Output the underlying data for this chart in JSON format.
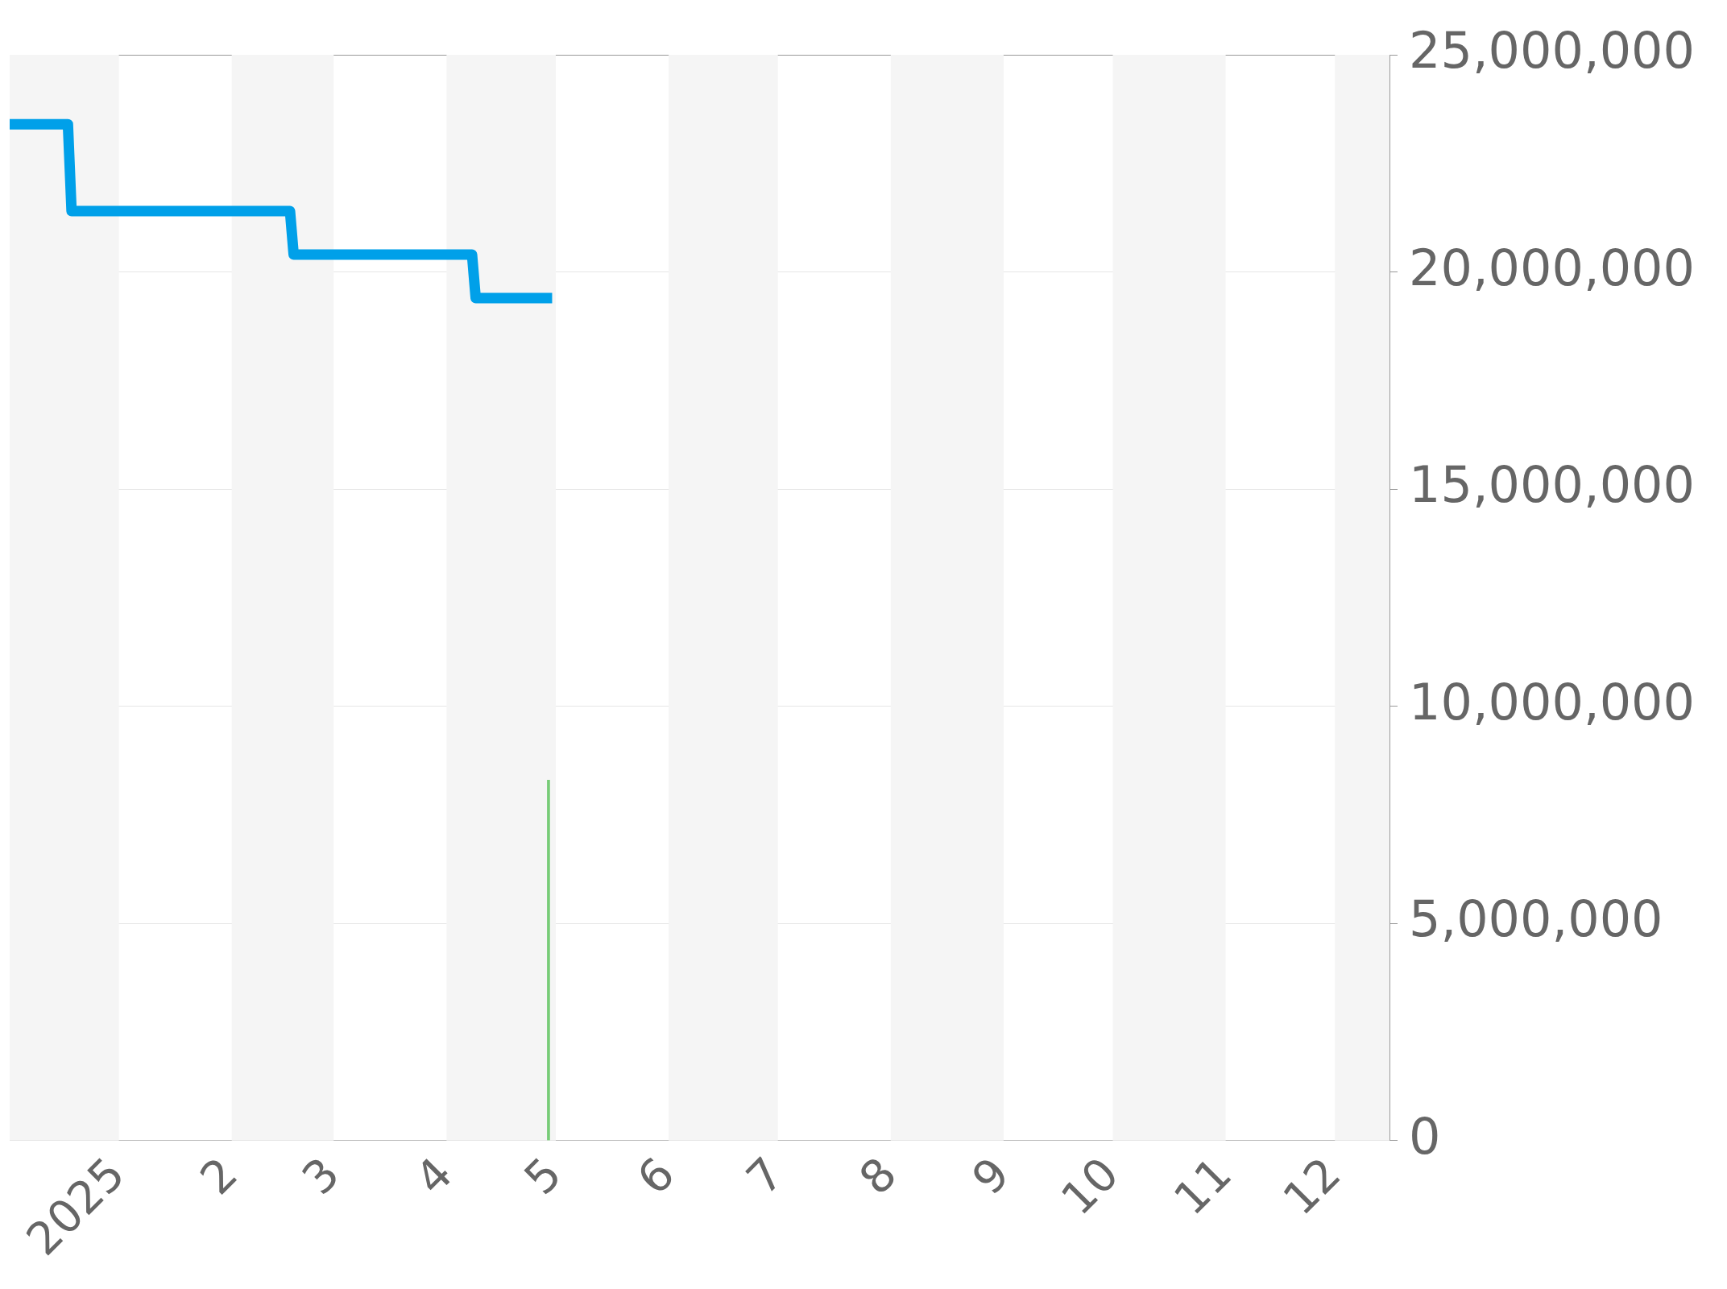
{
  "chart_data": {
    "type": "line",
    "series": [
      {
        "color": "#00a0e9",
        "x": [
          "2024-12-02",
          "2024-12-18",
          "2024-12-19",
          "2025-02-17",
          "2025-02-18",
          "2025-04-08",
          "2025-04-09",
          "2025-04-30"
        ],
        "values": [
          23400000,
          23400000,
          21400000,
          21400000,
          20400000,
          20400000,
          19400000,
          19400000
        ]
      },
      {
        "type": "bar",
        "color": "#77cc77",
        "x": [
          "2025-04-29"
        ],
        "values": [
          8300000
        ]
      }
    ],
    "xlim": [
      "2024-12-02",
      "2025-12-16"
    ],
    "xticks": [
      {
        "value": "2025-01-01",
        "label": "2025"
      },
      {
        "value": "2025-02-01",
        "label": "2"
      },
      {
        "value": "2025-03-01",
        "label": "3"
      },
      {
        "value": "2025-04-01",
        "label": "4"
      },
      {
        "value": "2025-05-01",
        "label": "5"
      },
      {
        "value": "2025-06-01",
        "label": "6"
      },
      {
        "value": "2025-07-01",
        "label": "7"
      },
      {
        "value": "2025-08-01",
        "label": "8"
      },
      {
        "value": "2025-09-01",
        "label": "9"
      },
      {
        "value": "2025-10-01",
        "label": "10"
      },
      {
        "value": "2025-11-01",
        "label": "11"
      },
      {
        "value": "2025-12-01",
        "label": "12"
      }
    ],
    "ylim": [
      0,
      25000000
    ],
    "yticks": [
      0,
      {
        "value": 5000000,
        "label": "5,000,000"
      },
      {
        "value": 10000000,
        "label": "10,000,000"
      },
      {
        "value": 15000000,
        "label": "15,000,000"
      },
      {
        "value": 20000000,
        "label": "20,000,000"
      },
      {
        "value": 25000000,
        "label": "25,000,000"
      }
    ],
    "grid": "y",
    "bands": [
      {
        "axis": "x",
        "from": "2024-12-02",
        "to": "2025-01-01",
        "color": "#f5f5f5"
      },
      {
        "axis": "x",
        "from": "2025-02-01",
        "to": "2025-03-01",
        "color": "#f5f5f5"
      },
      {
        "axis": "x",
        "from": "2025-04-01",
        "to": "2025-05-01",
        "color": "#f5f5f5"
      },
      {
        "axis": "x",
        "from": "2025-06-01",
        "to": "2025-07-01",
        "color": "#f5f5f5"
      },
      {
        "axis": "x",
        "from": "2025-08-01",
        "to": "2025-09-01",
        "color": "#f5f5f5"
      },
      {
        "axis": "x",
        "from": "2025-10-01",
        "to": "2025-11-01",
        "color": "#f5f5f5"
      },
      {
        "axis": "x",
        "from": "2025-12-01",
        "to": "2025-12-16",
        "color": "#f5f5f5"
      }
    ]
  }
}
